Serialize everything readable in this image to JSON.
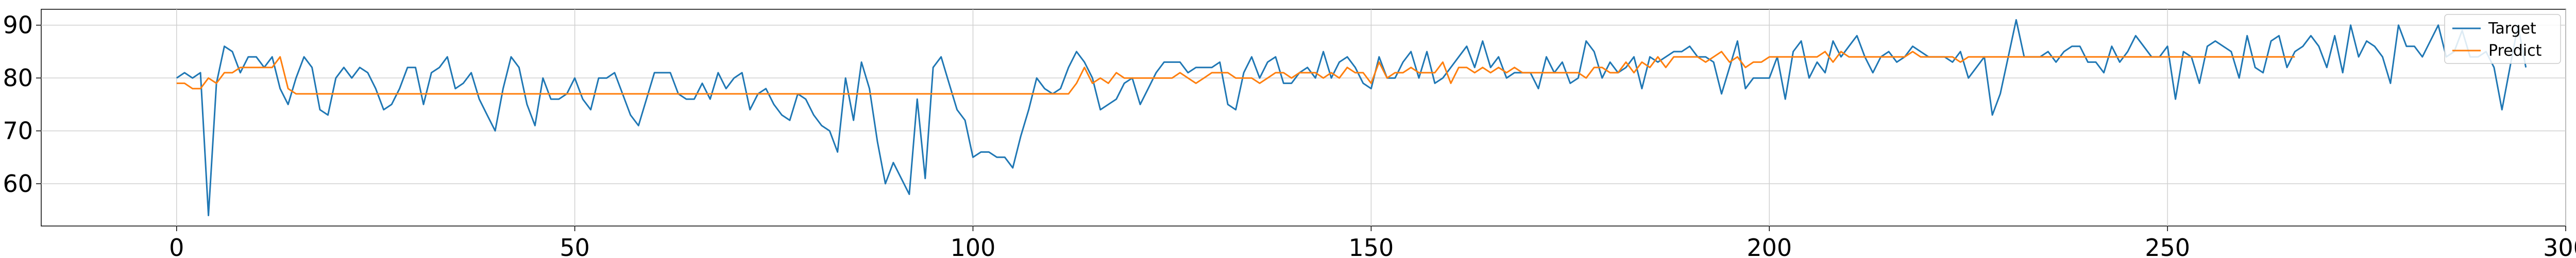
{
  "chart_data": {
    "type": "line",
    "title": "",
    "xlabel": "",
    "ylabel": "",
    "xlim": [
      -17,
      300
    ],
    "ylim": [
      52,
      93
    ],
    "xticks": [
      0,
      50,
      100,
      150,
      200,
      250,
      300
    ],
    "yticks": [
      60,
      70,
      80,
      90
    ],
    "grid": true,
    "legend_position": "top-right",
    "series": [
      {
        "name": "Target",
        "color": "#1f77b4",
        "x_start": 0,
        "values": [
          80,
          81,
          80,
          81,
          54,
          79,
          86,
          85,
          81,
          84,
          84,
          82,
          84,
          78,
          75,
          80,
          84,
          82,
          74,
          73,
          80,
          82,
          80,
          82,
          81,
          78,
          74,
          75,
          78,
          82,
          82,
          75,
          81,
          82,
          84,
          78,
          79,
          81,
          76,
          73,
          70,
          78,
          84,
          82,
          75,
          71,
          80,
          76,
          76,
          77,
          80,
          76,
          74,
          80,
          80,
          81,
          77,
          73,
          71,
          76,
          81,
          81,
          81,
          77,
          76,
          76,
          79,
          76,
          81,
          78,
          80,
          81,
          74,
          77,
          78,
          75,
          73,
          72,
          77,
          76,
          73,
          71,
          70,
          66,
          80,
          72,
          83,
          78,
          68,
          60,
          64,
          61,
          58,
          76,
          61,
          82,
          84,
          79,
          74,
          72,
          65,
          66,
          66,
          65,
          65,
          63,
          69,
          74,
          80,
          78,
          77,
          78,
          82,
          85,
          83,
          80,
          74,
          75,
          76,
          79,
          80,
          75,
          78,
          81,
          83,
          83,
          83,
          81,
          82,
          82,
          82,
          83,
          75,
          74,
          81,
          84,
          80,
          83,
          84,
          79,
          79,
          81,
          82,
          80,
          85,
          80,
          83,
          84,
          82,
          79,
          78,
          84,
          80,
          80,
          83,
          85,
          80,
          85,
          79,
          80,
          82,
          84,
          86,
          82,
          87,
          82,
          84,
          80,
          81,
          81,
          81,
          78,
          84,
          81,
          83,
          79,
          80,
          87,
          85,
          80,
          83,
          81,
          82,
          84,
          78,
          84,
          83,
          84,
          85,
          85,
          86,
          84,
          84,
          83,
          77,
          82,
          87,
          78,
          80,
          80,
          80,
          84,
          76,
          85,
          87,
          80,
          83,
          81,
          87,
          84,
          86,
          88,
          84,
          81,
          84,
          85,
          83,
          84,
          86,
          85,
          84,
          84,
          84,
          83,
          85,
          80,
          82,
          84,
          73,
          77,
          84,
          91,
          84,
          84,
          84,
          85,
          83,
          85,
          86,
          86,
          83,
          83,
          81,
          86,
          83,
          85,
          88,
          86,
          84,
          84,
          86,
          76,
          85,
          84,
          79,
          86,
          87,
          86,
          85,
          80,
          88,
          82,
          81,
          87,
          88,
          82,
          85,
          86,
          88,
          86,
          82,
          88,
          81,
          90,
          84,
          87,
          86,
          84,
          79,
          90,
          86,
          86,
          84,
          87,
          90,
          84,
          85,
          89,
          84,
          84,
          85,
          82,
          74,
          82,
          90,
          82
        ]
      },
      {
        "name": "Predict",
        "color": "#ff7f0e",
        "x_start": 0,
        "values": [
          79,
          79,
          78,
          78,
          80,
          79,
          81,
          81,
          82,
          82,
          82,
          82,
          82,
          84,
          78,
          77,
          77,
          77,
          77,
          77,
          77,
          77,
          77,
          77,
          77,
          77,
          77,
          77,
          77,
          77,
          77,
          77,
          77,
          77,
          77,
          77,
          77,
          77,
          77,
          77,
          77,
          77,
          77,
          77,
          77,
          77,
          77,
          77,
          77,
          77,
          77,
          77,
          77,
          77,
          77,
          77,
          77,
          77,
          77,
          77,
          77,
          77,
          77,
          77,
          77,
          77,
          77,
          77,
          77,
          77,
          77,
          77,
          77,
          77,
          77,
          77,
          77,
          77,
          77,
          77,
          77,
          77,
          77,
          77,
          77,
          77,
          77,
          77,
          77,
          77,
          77,
          77,
          77,
          77,
          77,
          77,
          77,
          77,
          77,
          77,
          77,
          77,
          77,
          77,
          77,
          77,
          77,
          77,
          77,
          77,
          77,
          77,
          77,
          79,
          82,
          79,
          80,
          79,
          81,
          80,
          80,
          80,
          80,
          80,
          80,
          80,
          81,
          80,
          79,
          80,
          81,
          81,
          81,
          80,
          80,
          80,
          79,
          80,
          81,
          81,
          80,
          81,
          81,
          81,
          80,
          81,
          80,
          82,
          81,
          81,
          79,
          83,
          80,
          81,
          81,
          82,
          81,
          81,
          81,
          83,
          79,
          82,
          82,
          81,
          82,
          81,
          82,
          81,
          82,
          81,
          81,
          81,
          81,
          81,
          81,
          81,
          81,
          80,
          82,
          82,
          81,
          81,
          83,
          81,
          83,
          82,
          84,
          82,
          84,
          84,
          84,
          84,
          83,
          84,
          85,
          83,
          84,
          82,
          83,
          83,
          84,
          84,
          84,
          84,
          84,
          84,
          84,
          85,
          83,
          85,
          84,
          84,
          84,
          84,
          84,
          84,
          84,
          84,
          85,
          84,
          84,
          84,
          84,
          84,
          83,
          84,
          84,
          84,
          84,
          84,
          84,
          84,
          84,
          84,
          84,
          84,
          84,
          84,
          84,
          84,
          84,
          84,
          84,
          84,
          84,
          84,
          84,
          84,
          84,
          84,
          84,
          84,
          84,
          84,
          84,
          84,
          84,
          84,
          84,
          84,
          84,
          84,
          84,
          84,
          84,
          84,
          84
        ]
      }
    ]
  }
}
